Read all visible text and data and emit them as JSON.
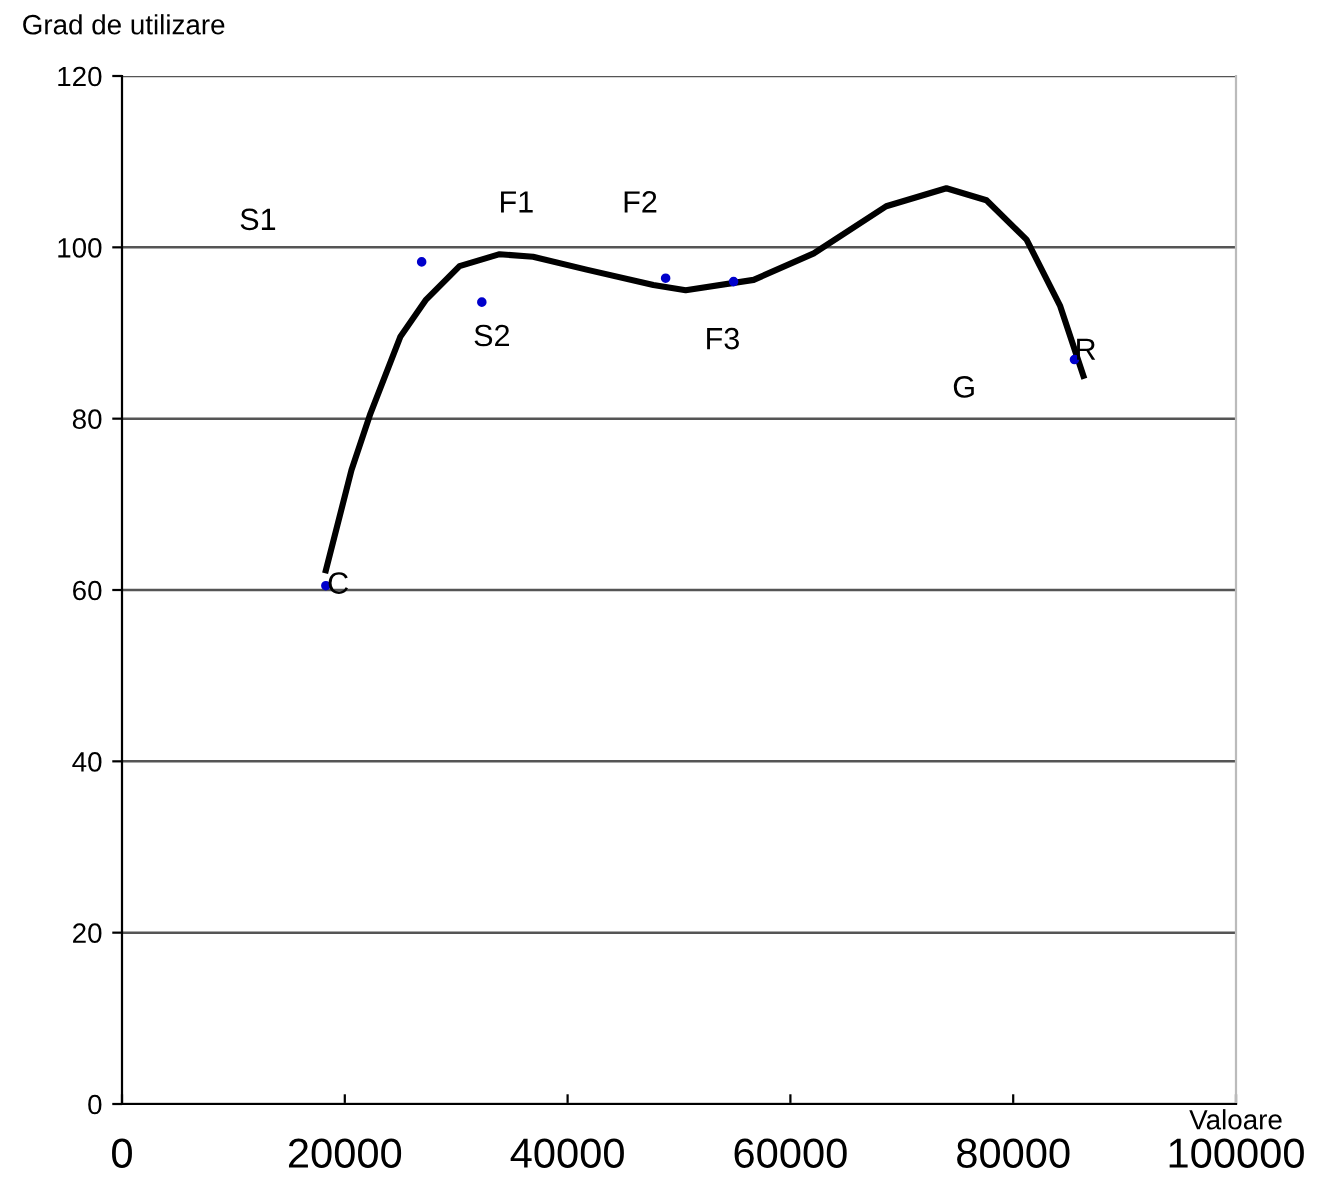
{
  "chart_data": {
    "type": "scatter",
    "xlabel": "Valoare",
    "ylabel": "Grad de utilizare",
    "xlim": [
      0,
      100000
    ],
    "xticks": [
      0,
      20000,
      40000,
      60000,
      80000,
      100000
    ],
    "ylim": [
      0,
      120
    ],
    "yticks": [
      0,
      20,
      40,
      60,
      80,
      100,
      120
    ],
    "grid": "y",
    "series": [
      {
        "color": "#0000cc",
        "marker": "circle",
        "x": [
          18300,
          26900,
          32300,
          48800,
          54900,
          85500
        ],
        "values": [
          60.5,
          98.3,
          93.6,
          96.4,
          96.0,
          86.9
        ]
      },
      {
        "type": "line",
        "color": "#000000",
        "line_style": "solid",
        "marker": "none",
        "x": [
          18300,
          20600,
          22300,
          25000,
          27300,
          30300,
          33900,
          36900,
          41700,
          47700,
          50600,
          56700,
          62100,
          68600,
          74000,
          77600,
          81200,
          84200,
          86300
        ],
        "values": [
          62.3,
          74,
          80.6,
          89.6,
          93.9,
          97.8,
          99.2,
          98.9,
          97.4,
          95.6,
          95.0,
          96.2,
          99.3,
          104.8,
          106.9,
          105.5,
          100.9,
          93.2,
          85.0
        ]
      }
    ],
    "annotations": [
      "S1",
      "F1",
      "F2",
      "S2",
      "F3",
      "G",
      {
        "text": "R",
        "x": 86500,
        "y": 87.8
      },
      {
        "text": "C",
        "x": 19400,
        "y": 60.5
      }
    ]
  }
}
